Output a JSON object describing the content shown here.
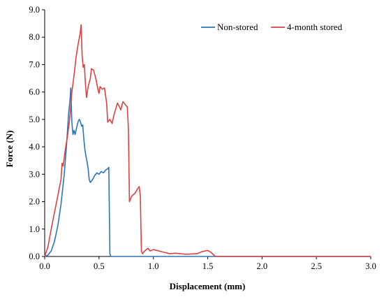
{
  "chart_data": {
    "type": "line",
    "title": "",
    "xlabel": "Displacement (mm)",
    "ylabel": "Force (N)",
    "xlim": [
      0,
      3.0
    ],
    "ylim": [
      0,
      9.0
    ],
    "x_ticks": [
      0,
      0.5,
      1.0,
      1.5,
      2.0,
      2.5,
      3.0
    ],
    "x_tick_labels": [
      "0.0",
      "0.5",
      "1.0",
      "1.5",
      "2.0",
      "2.5",
      "3.0"
    ],
    "y_ticks": [
      0,
      1,
      2,
      3,
      4,
      5,
      6,
      7,
      8,
      9
    ],
    "y_tick_labels": [
      "0.0",
      "1.0",
      "2.0",
      "3.0",
      "4.0",
      "5.0",
      "6.0",
      "7.0",
      "8.0",
      "9.0"
    ],
    "grid": false,
    "legend": {
      "placement": "top-right",
      "orientation": "horizontal"
    },
    "series": [
      {
        "name": "Non-stored",
        "color": "#2e75b6",
        "points": [
          [
            0.0,
            0.0
          ],
          [
            0.03,
            0.05
          ],
          [
            0.06,
            0.2
          ],
          [
            0.09,
            0.55
          ],
          [
            0.12,
            1.1
          ],
          [
            0.15,
            1.9
          ],
          [
            0.18,
            3.0
          ],
          [
            0.2,
            4.0
          ],
          [
            0.22,
            5.2
          ],
          [
            0.235,
            5.8
          ],
          [
            0.24,
            6.15
          ],
          [
            0.25,
            4.9
          ],
          [
            0.26,
            4.45
          ],
          [
            0.27,
            4.6
          ],
          [
            0.28,
            4.45
          ],
          [
            0.3,
            4.8
          ],
          [
            0.31,
            4.95
          ],
          [
            0.32,
            5.0
          ],
          [
            0.33,
            4.9
          ],
          [
            0.34,
            4.75
          ],
          [
            0.35,
            4.8
          ],
          [
            0.36,
            4.3
          ],
          [
            0.37,
            3.9
          ],
          [
            0.38,
            3.65
          ],
          [
            0.39,
            3.45
          ],
          [
            0.4,
            3.2
          ],
          [
            0.41,
            2.8
          ],
          [
            0.42,
            2.7
          ],
          [
            0.44,
            2.8
          ],
          [
            0.46,
            2.95
          ],
          [
            0.48,
            3.05
          ],
          [
            0.5,
            3.0
          ],
          [
            0.52,
            3.1
          ],
          [
            0.54,
            3.05
          ],
          [
            0.56,
            3.15
          ],
          [
            0.58,
            3.2
          ],
          [
            0.59,
            3.25
          ],
          [
            0.6,
            0.1
          ],
          [
            0.61,
            0.0
          ],
          [
            3.0,
            0.0
          ]
        ]
      },
      {
        "name": "4-month stored",
        "color": "#d94343",
        "points": [
          [
            0.0,
            0.0
          ],
          [
            0.03,
            0.35
          ],
          [
            0.06,
            1.0
          ],
          [
            0.09,
            1.6
          ],
          [
            0.12,
            2.2
          ],
          [
            0.15,
            2.8
          ],
          [
            0.16,
            3.4
          ],
          [
            0.17,
            3.3
          ],
          [
            0.19,
            3.9
          ],
          [
            0.21,
            4.4
          ],
          [
            0.23,
            5.0
          ],
          [
            0.25,
            6.0
          ],
          [
            0.27,
            6.6
          ],
          [
            0.29,
            7.3
          ],
          [
            0.31,
            7.8
          ],
          [
            0.325,
            8.1
          ],
          [
            0.335,
            8.45
          ],
          [
            0.345,
            7.3
          ],
          [
            0.355,
            6.9
          ],
          [
            0.365,
            7.0
          ],
          [
            0.375,
            6.3
          ],
          [
            0.385,
            5.8
          ],
          [
            0.4,
            6.2
          ],
          [
            0.42,
            6.5
          ],
          [
            0.43,
            6.85
          ],
          [
            0.45,
            6.8
          ],
          [
            0.47,
            6.5
          ],
          [
            0.49,
            6.1
          ],
          [
            0.5,
            5.95
          ],
          [
            0.51,
            6.2
          ],
          [
            0.53,
            6.1
          ],
          [
            0.55,
            6.15
          ],
          [
            0.57,
            5.6
          ],
          [
            0.58,
            4.9
          ],
          [
            0.6,
            5.0
          ],
          [
            0.62,
            4.85
          ],
          [
            0.64,
            5.2
          ],
          [
            0.67,
            5.6
          ],
          [
            0.7,
            5.35
          ],
          [
            0.72,
            5.65
          ],
          [
            0.74,
            5.55
          ],
          [
            0.76,
            5.45
          ],
          [
            0.77,
            4.7
          ],
          [
            0.78,
            2.0
          ],
          [
            0.8,
            2.2
          ],
          [
            0.83,
            2.3
          ],
          [
            0.86,
            2.5
          ],
          [
            0.87,
            2.55
          ],
          [
            0.88,
            2.2
          ],
          [
            0.89,
            0.2
          ],
          [
            0.9,
            0.1
          ],
          [
            0.92,
            0.2
          ],
          [
            0.95,
            0.3
          ],
          [
            0.97,
            0.2
          ],
          [
            1.0,
            0.25
          ],
          [
            1.05,
            0.2
          ],
          [
            1.1,
            0.15
          ],
          [
            1.15,
            0.1
          ],
          [
            1.2,
            0.12
          ],
          [
            1.3,
            0.08
          ],
          [
            1.4,
            0.1
          ],
          [
            1.45,
            0.18
          ],
          [
            1.5,
            0.22
          ],
          [
            1.53,
            0.15
          ],
          [
            1.57,
            0.0
          ],
          [
            3.0,
            0.0
          ]
        ]
      }
    ]
  }
}
